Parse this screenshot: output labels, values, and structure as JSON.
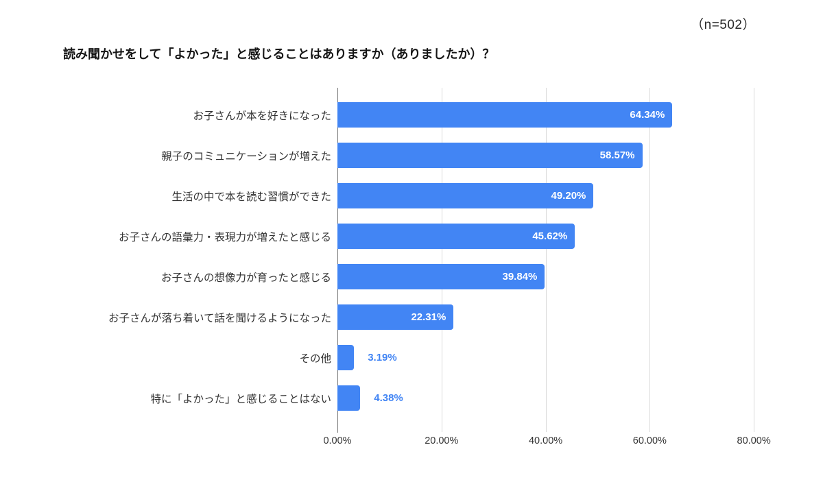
{
  "annotation": {
    "n_label": "（n=502）"
  },
  "chart_data": {
    "type": "bar",
    "orientation": "horizontal",
    "title": "読み聞かせをして「よかった」と感じることはありますか（ありましたか）？",
    "categories": [
      "お子さんが本を好きになった",
      "親子のコミュニケーションが増えた",
      "生活の中で本を読む習慣ができた",
      "お子さんの語彙力・表現力が増えたと感じる",
      "お子さんの想像力が育ったと感じる",
      "お子さんが落ち着いて話を聞けるようになった",
      "その他",
      "特に「よかった」と感じることはない"
    ],
    "values": [
      64.34,
      58.57,
      49.2,
      45.62,
      39.84,
      22.31,
      3.19,
      4.38
    ],
    "value_labels": [
      "64.34%",
      "58.57%",
      "49.20%",
      "45.62%",
      "39.84%",
      "22.31%",
      "3.19%",
      "4.38%"
    ],
    "sample_size": 502,
    "x_axis": {
      "max": 86.7,
      "ticks": [
        {
          "value": 0,
          "label": "0.00%"
        },
        {
          "value": 20,
          "label": "20.00%"
        },
        {
          "value": 40,
          "label": "40.00%"
        },
        {
          "value": 60,
          "label": "60.00%"
        },
        {
          "value": 80,
          "label": "80.00%"
        }
      ]
    },
    "grid": true,
    "legend": "none",
    "colors": {
      "bar": "#4285f4",
      "value_label_inside": "#ffffff",
      "value_label_outside": "#4285f4",
      "gridline": "#dadada",
      "axis_line": "#757575"
    }
  }
}
